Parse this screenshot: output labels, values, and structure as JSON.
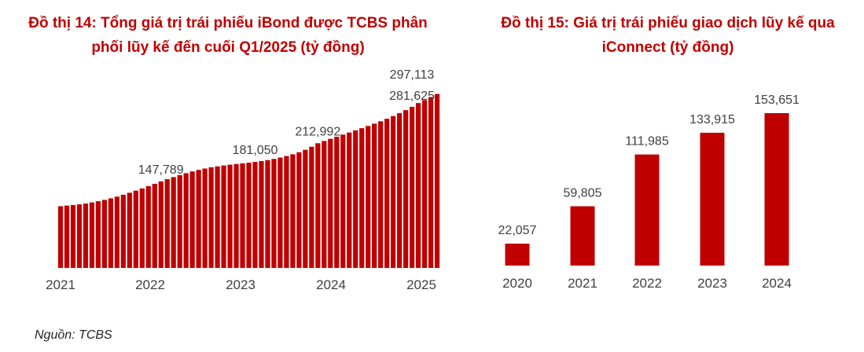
{
  "colors": {
    "bar": "#c00000",
    "title": "#c00000",
    "axis_text": "#404040"
  },
  "source": "Nguồn: TCBS",
  "chart_data": [
    {
      "type": "bar",
      "title_lines": [
        "Đồ thị 14: Tổng giá trị trái phiếu iBond được TCBS phân",
        "phối lũy kế đến cuối Q1/2025 (tỷ đồng)"
      ],
      "x_tick_labels": [
        "2021",
        "2022",
        "2023",
        "2024",
        "2025"
      ],
      "ylim": [
        0,
        310000
      ],
      "values": [
        105500,
        106500,
        107500,
        108600,
        110000,
        111900,
        114000,
        116200,
        118800,
        121800,
        125000,
        128400,
        132000,
        135800,
        139800,
        143700,
        147789,
        151600,
        155200,
        158600,
        161800,
        164800,
        167500,
        169800,
        171800,
        173500,
        175000,
        176300,
        177500,
        178600,
        179700,
        181050,
        182500,
        184200,
        186200,
        188500,
        191100,
        194100,
        197600,
        201800,
        207000,
        212992,
        216800,
        220500,
        224100,
        227700,
        231300,
        235000,
        238700,
        242500,
        246400,
        250500,
        254800,
        259400,
        264300,
        269500,
        275200,
        281625,
        286600,
        291800,
        297113
      ],
      "data_labels": [
        {
          "index": 16,
          "text": "147,789"
        },
        {
          "index": 31,
          "text": "181,050"
        },
        {
          "index": 41,
          "text": "212,992"
        },
        {
          "index": 57,
          "text": "281,625"
        },
        {
          "index": 60,
          "text": "297,113"
        }
      ]
    },
    {
      "type": "bar",
      "title_lines": [
        "Đồ thị 15: Giá trị trái phiếu giao dịch lũy kế qua",
        "iConnect (tỷ đồng)"
      ],
      "categories": [
        "2020",
        "2021",
        "2022",
        "2023",
        "2024"
      ],
      "values": [
        22057,
        59805,
        111985,
        133915,
        153651
      ],
      "value_labels": [
        "22,057",
        "59,805",
        "111,985",
        "133,915",
        "153,651"
      ],
      "ylim": [
        0,
        160000
      ]
    }
  ]
}
